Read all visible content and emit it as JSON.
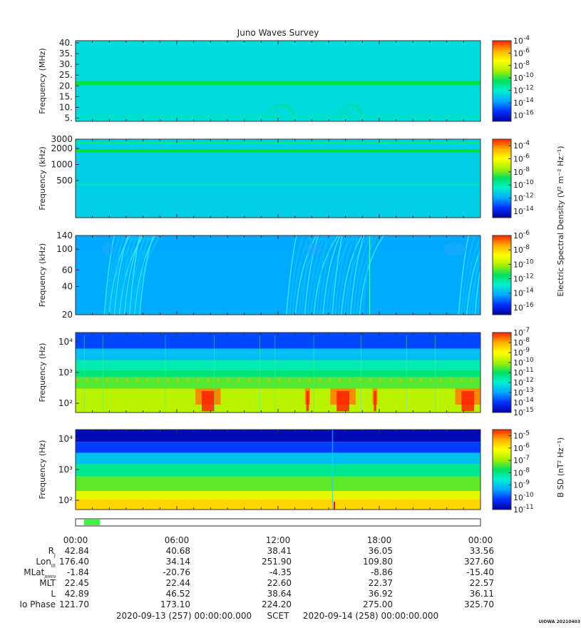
{
  "title": "Juno Waves Survey",
  "cbar_label_e": "Electric Spectral Density (V² m⁻² Hz⁻¹)",
  "cbar_label_b": "B SD (nT² Hz⁻¹)",
  "footer": {
    "start": "2020-09-13 (257) 00:00:00.000",
    "mid": "SCET",
    "end": "2020-09-14 (258) 00:00:00.000",
    "tag": "UIOWA 20210403"
  },
  "time_ticks": [
    "00:00",
    "06:00",
    "12:00",
    "18:00",
    "00:00"
  ],
  "ephemeris": [
    {
      "label": "R",
      "sub": "J",
      "values": [
        "42.84",
        "40.68",
        "38.41",
        "36.05",
        "33.56"
      ]
    },
    {
      "label": "Lon",
      "sub": "III",
      "values": [
        "176.40",
        "34.14",
        "251.90",
        "109.80",
        "327.60"
      ]
    },
    {
      "label": "MLat",
      "sub": "JRM09",
      "values": [
        "-1.84",
        "-20.76",
        "-4.35",
        "-8.86",
        "-15.40"
      ]
    },
    {
      "label": "MLT",
      "sub": "",
      "values": [
        "22.45",
        "22.44",
        "22.60",
        "22.37",
        "22.57"
      ]
    },
    {
      "label": "L",
      "sub": "",
      "values": [
        "42.89",
        "46.52",
        "38.64",
        "36.92",
        "36.11"
      ]
    },
    {
      "label": "Io Phase",
      "sub": "",
      "values": [
        "121.70",
        "173.10",
        "224.20",
        "275.00",
        "325.70"
      ]
    }
  ],
  "data_coverage": [
    [
      0.5,
      1.45
    ]
  ],
  "colors": {
    "cmap": [
      "#0000a0",
      "#0030ff",
      "#00a8ff",
      "#00f0d0",
      "#00e060",
      "#a8f000",
      "#ffff00",
      "#ffb000",
      "#ff2000"
    ]
  },
  "chart_data": [
    {
      "type": "heatmap",
      "ylabel": "Frequency (MHz)",
      "yscale": "linear",
      "ylim": [
        3.5,
        41
      ],
      "yticks": [
        "40.",
        "35.",
        "30.",
        "25.",
        "20.",
        "15.",
        "10.",
        "5."
      ],
      "ytick_values": [
        40,
        35,
        30,
        25,
        20,
        15,
        10,
        5
      ],
      "cbar_ticks": [
        "-4",
        "-6",
        "-8",
        "-10",
        "-12",
        "-14",
        "-16"
      ],
      "cbar_range": [
        -17,
        -4
      ],
      "background_log_density": -12.6,
      "features": [
        "persistent band near 21 MHz",
        "faint arcs near 12 and 16 UT"
      ]
    },
    {
      "type": "heatmap",
      "ylabel": "Frequency (kHz)",
      "yscale": "log",
      "ylim": [
        100,
        3000
      ],
      "yticks": [
        "3000",
        "2000",
        "1000",
        "500"
      ],
      "ytick_values": [
        3000,
        2000,
        1000,
        500
      ],
      "cbar_ticks": [
        "-4",
        "-6",
        "-8",
        "-10",
        "-12",
        "-14"
      ],
      "cbar_range": [
        -15,
        -3
      ],
      "background_log_density": -11.2,
      "features": [
        "persistent bands near 1800 and 2500 kHz"
      ]
    },
    {
      "type": "heatmap",
      "ylabel": "Frequency (kHz)",
      "yscale": "log",
      "ylim": [
        20,
        140
      ],
      "yticks": [
        "140",
        "100",
        "60",
        "40",
        "20"
      ],
      "ytick_values": [
        140,
        100,
        60,
        40,
        20
      ],
      "cbar_ticks": [
        "-6",
        "-8",
        "-10",
        "-12",
        "-14",
        "-16"
      ],
      "cbar_range": [
        -17,
        -6
      ],
      "background_log_density": -14.2,
      "features": [
        "arc bursts 2-4 UT",
        "arc bursts 13-17 UT",
        "burst near 23.5 UT"
      ]
    },
    {
      "type": "heatmap",
      "ylabel": "Frequency (Hz)",
      "yscale": "log",
      "ylim": [
        50,
        20000
      ],
      "yticks": [
        "10⁴",
        "10³",
        "10²"
      ],
      "ytick_values": [
        10000,
        1000,
        100
      ],
      "cbar_ticks": [
        "-7",
        "-8",
        "-9",
        "-10",
        "-11",
        "-12",
        "-13",
        "-14",
        "-15"
      ],
      "cbar_range": [
        -15,
        -7
      ],
      "features": [
        "intense emission below 400 Hz at 7-9, 13.5, 15-16.5, 17.5 and 22.5-24 UT"
      ]
    },
    {
      "type": "heatmap",
      "ylabel": "Frequency (Hz)",
      "yscale": "log",
      "ylim": [
        50,
        20000
      ],
      "yticks": [
        "10⁴",
        "10³",
        "10²"
      ],
      "ytick_values": [
        10000,
        1000,
        100
      ],
      "cbar_ticks": [
        "-5",
        "-6",
        "-7",
        "-8",
        "-9",
        "-10",
        "-11"
      ],
      "cbar_range": [
        -11,
        -4.5
      ],
      "features": [
        "magnetic spectrum strongest at lowest frequencies"
      ]
    }
  ]
}
